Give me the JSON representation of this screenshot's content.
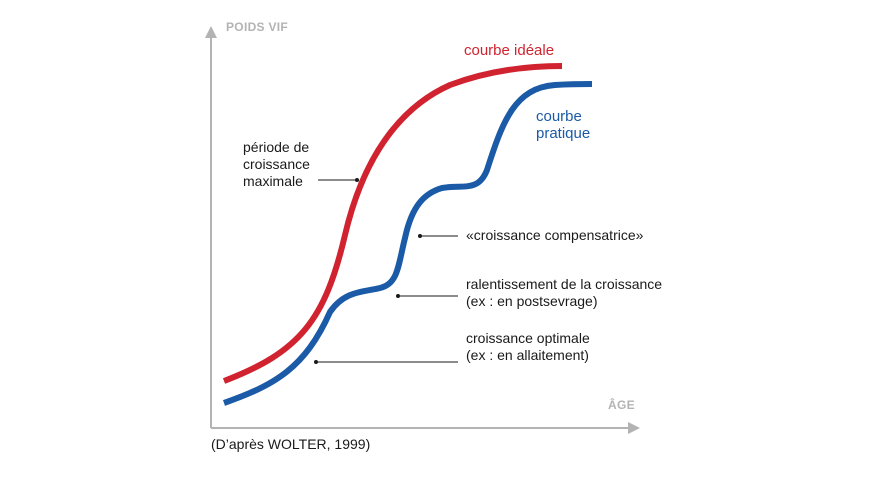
{
  "axes": {
    "y_label": "POIDS VIF",
    "x_label": "ÂGE"
  },
  "curves": {
    "ideal": {
      "label": "courbe idéale",
      "color": "#d1232f"
    },
    "practical": {
      "label_line1": "courbe",
      "label_line2": "pratique",
      "color": "#1a5aa6"
    }
  },
  "annotations": {
    "max_growth": {
      "line1": "période de",
      "line2": "croissance",
      "line3": "maximale"
    },
    "compensatory": {
      "text": "«croissance compensatrice»"
    },
    "slowdown": {
      "line1": "ralentissement de la croissance",
      "line2": "(ex : en postsevrage)"
    },
    "optimal": {
      "line1": "croissance optimale",
      "line2": "(ex : en allaitement)"
    }
  },
  "source": "(D’après WOLTER, 1999)",
  "colors": {
    "axis": "#b3b3b3",
    "text": "#1a1a1a"
  }
}
